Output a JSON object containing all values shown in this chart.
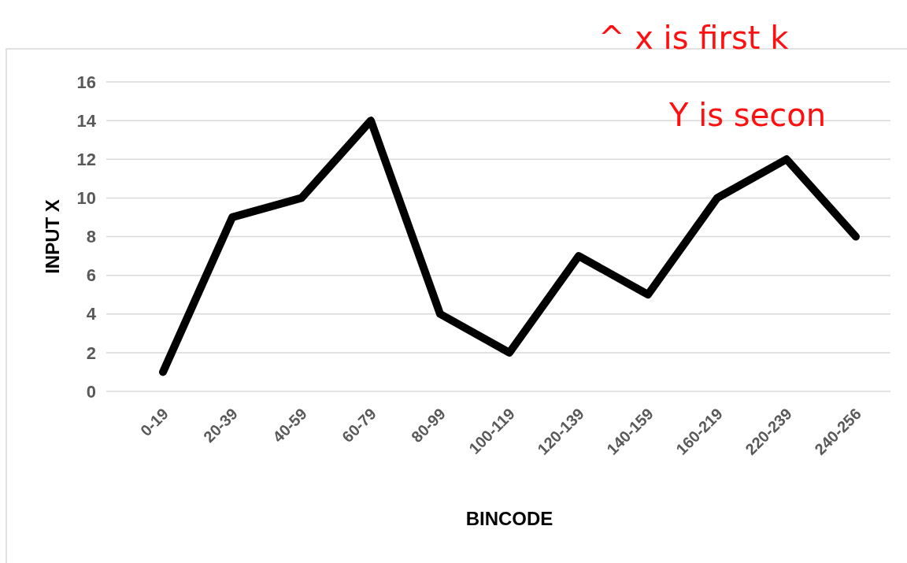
{
  "chart_data": {
    "type": "line",
    "xlabel": "BINCODE",
    "ylabel": "INPUT X",
    "categories": [
      "0-19",
      "20-39",
      "40-59",
      "60-79",
      "80-99",
      "100-119",
      "120-139",
      "140-159",
      "160-219",
      "220-239",
      "240-256"
    ],
    "series": [
      {
        "color": "#000000",
        "values": [
          1,
          9,
          10,
          14,
          4,
          2,
          7,
          5,
          10,
          12,
          8
        ]
      }
    ],
    "ylim": [
      0,
      16
    ],
    "yticks": [
      0,
      2,
      4,
      6,
      8,
      10,
      12,
      14,
      16
    ],
    "grid": "y",
    "marker": "none",
    "line_style": "solid",
    "annotations": [
      "^ x is first k",
      "Y is secon"
    ]
  }
}
